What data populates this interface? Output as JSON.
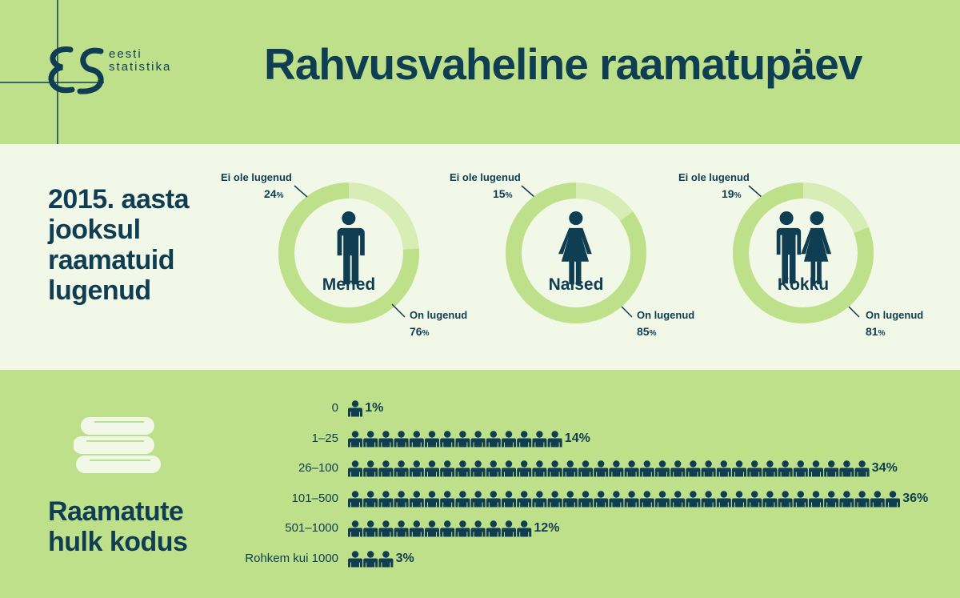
{
  "header": {
    "title": "Rahvusvaheline raamatupäev",
    "logo_text_line1": "eesti",
    "logo_text_line2": "statistika"
  },
  "reading": {
    "section_title_lines": [
      "2015. aasta",
      "jooksul",
      "raamatuid",
      "lugenud"
    ],
    "not_read_label": "Ei ole lugenud",
    "read_label": "On lugenud",
    "groups": [
      {
        "name": "Mehed",
        "read": 76,
        "not_read": 24,
        "icon": "man-icon"
      },
      {
        "name": "Naised",
        "read": 85,
        "not_read": 15,
        "icon": "woman-icon"
      },
      {
        "name": "Kokku",
        "read": 81,
        "not_read": 19,
        "icon": "couple-icon"
      }
    ]
  },
  "books": {
    "section_title_lines": [
      "Raamatute",
      "hulk kodus"
    ],
    "icon": "books-icon"
  },
  "colors": {
    "dark": "#0f3d52",
    "green": "#bfe08a",
    "light_green": "#d8ecb6",
    "pale": "#f2f8e8"
  },
  "chart_data": [
    {
      "type": "pie",
      "title": "Mehed",
      "categories": [
        "On lugenud",
        "Ei ole lugenud"
      ],
      "values": [
        76,
        24
      ],
      "unit": "%"
    },
    {
      "type": "pie",
      "title": "Naised",
      "categories": [
        "On lugenud",
        "Ei ole lugenud"
      ],
      "values": [
        85,
        15
      ],
      "unit": "%"
    },
    {
      "type": "pie",
      "title": "Kokku",
      "categories": [
        "On lugenud",
        "Ei ole lugenud"
      ],
      "values": [
        81,
        19
      ],
      "unit": "%"
    },
    {
      "type": "bar",
      "title": "Raamatute hulk kodus",
      "categories": [
        "0",
        "1–25",
        "26–100",
        "101–500",
        "501–1000",
        "Rohkem kui 1000"
      ],
      "values": [
        1,
        14,
        34,
        36,
        12,
        3
      ],
      "unit": "%"
    }
  ]
}
